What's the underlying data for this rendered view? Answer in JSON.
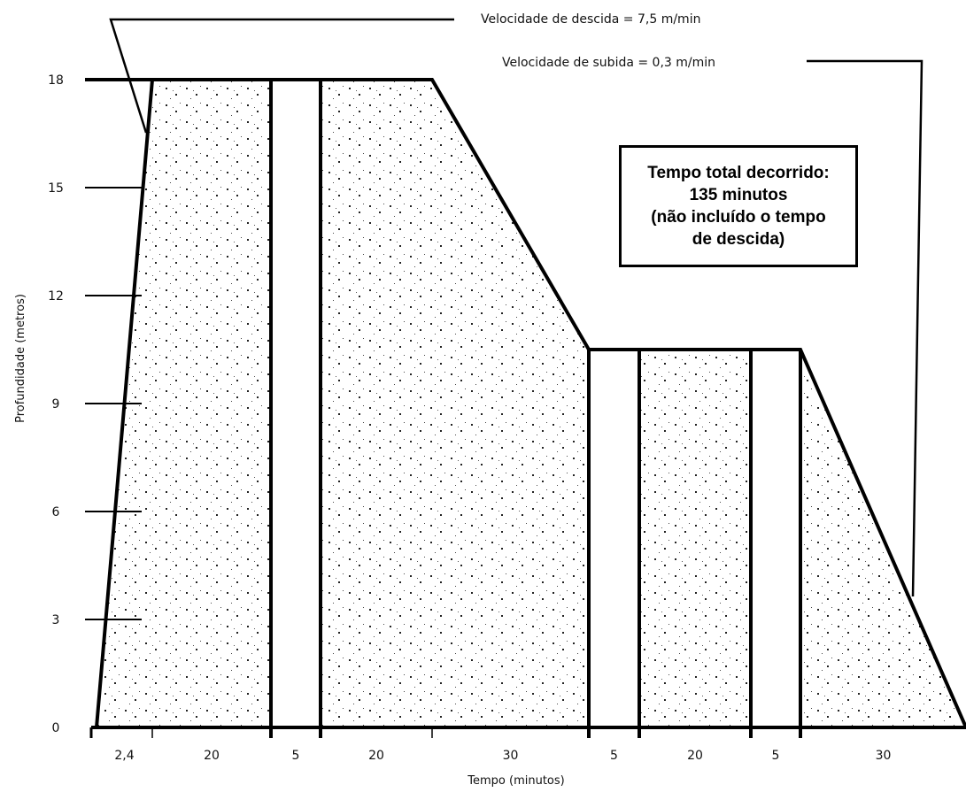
{
  "chart_data": {
    "type": "area",
    "xlabel": "Tempo (minutos)",
    "ylabel": "Profundidade (metros)",
    "yticks": [
      "0",
      "3",
      "6",
      "9",
      "12",
      "15",
      "18"
    ],
    "ylim": [
      0,
      18
    ],
    "segments": [
      {
        "label": "2,4",
        "minutes": 2.4
      },
      {
        "label": "20",
        "minutes": 20
      },
      {
        "label": "5",
        "minutes": 5
      },
      {
        "label": "20",
        "minutes": 20
      },
      {
        "label": "30",
        "minutes": 30
      },
      {
        "label": "5",
        "minutes": 5
      },
      {
        "label": "20",
        "minutes": 20
      },
      {
        "label": "5",
        "minutes": 5
      },
      {
        "label": "30",
        "minutes": 30
      }
    ],
    "profile": [
      {
        "time": 0,
        "depth": 0
      },
      {
        "time": 2.4,
        "depth": 18
      },
      {
        "time": 47.4,
        "depth": 18
      },
      {
        "time": 77.4,
        "depth": 10.5
      },
      {
        "time": 107.4,
        "depth": 10.5
      },
      {
        "time": 137.4,
        "depth": 0
      }
    ],
    "annotations": {
      "descent_speed": "Velocidade de descida = 7,5 m/min",
      "ascent_speed": "Velocidade de subida = 0,3 m/min",
      "total_time": [
        "Tempo total decorrido:",
        "135 minutos",
        "(não incluído o tempo",
        "de descida)"
      ]
    },
    "grid": false,
    "legend": "none"
  }
}
